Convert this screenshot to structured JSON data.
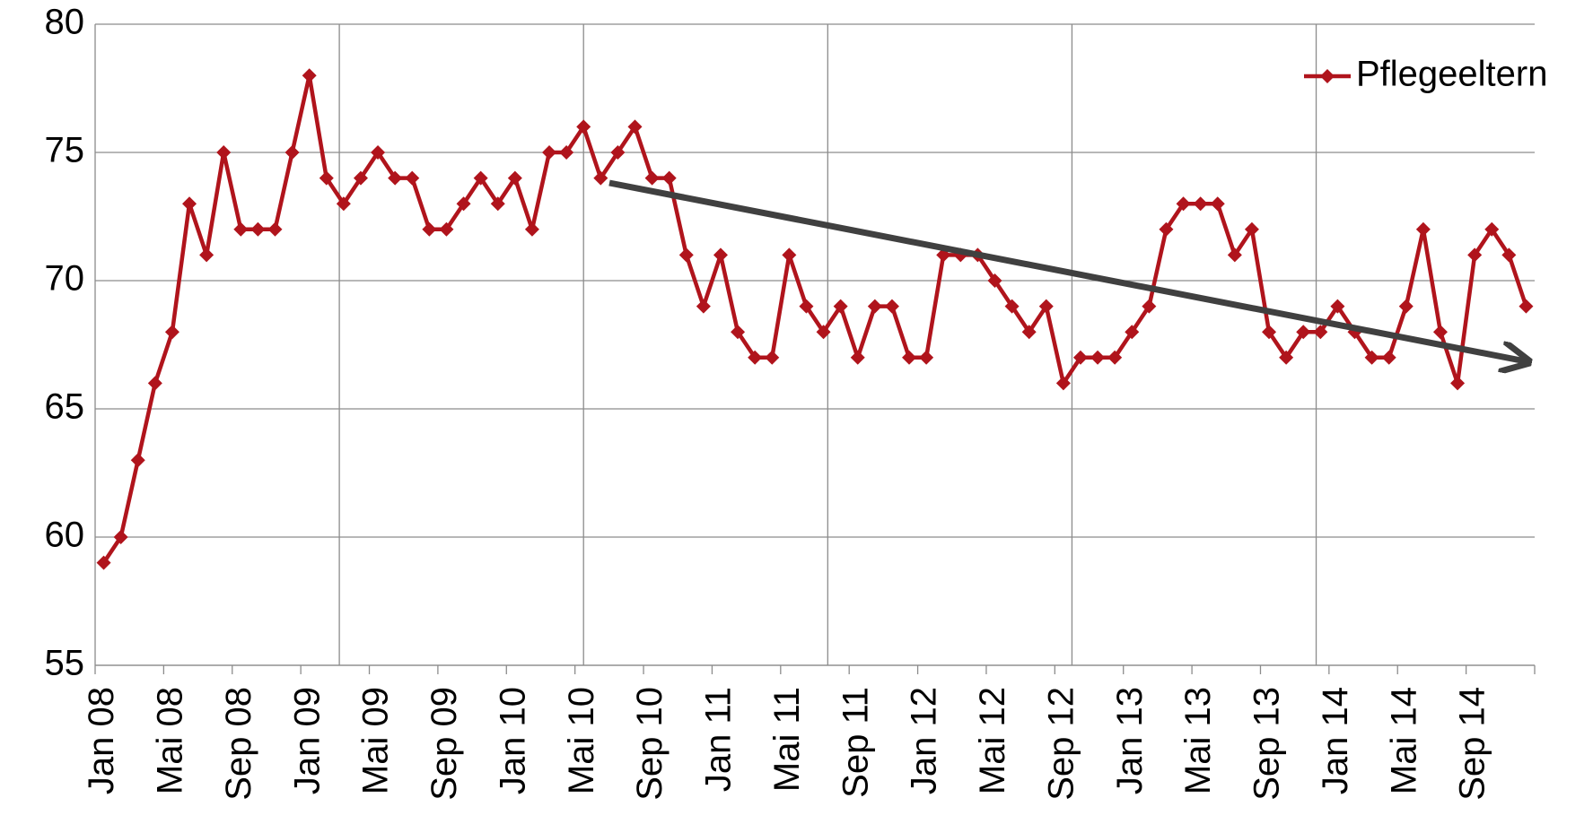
{
  "chart_data": {
    "type": "line",
    "categories": [
      "Jan 08",
      null,
      null,
      null,
      "Mai 08",
      null,
      null,
      null,
      "Sep 08",
      null,
      null,
      null,
      "Jan 09",
      null,
      null,
      null,
      "Mai 09",
      null,
      null,
      null,
      "Sep 09",
      null,
      null,
      null,
      "Jan 10",
      null,
      null,
      null,
      "Mai 10",
      null,
      null,
      null,
      "Sep 10",
      null,
      null,
      null,
      "Jan 11",
      null,
      null,
      null,
      "Mai 11",
      null,
      null,
      null,
      "Sep 11",
      null,
      null,
      null,
      "Jan 12",
      null,
      null,
      null,
      "Mai 12",
      null,
      null,
      null,
      "Sep 12",
      null,
      null,
      null,
      "Jan 13",
      null,
      null,
      null,
      "Mai 13",
      null,
      null,
      null,
      "Sep 13",
      null,
      null,
      null,
      "Jan 14",
      null,
      null,
      null,
      "Mai 14",
      null,
      null,
      null,
      "Sep 14",
      null,
      null,
      null
    ],
    "series": [
      {
        "name": "Pflegeeltern",
        "color": "#b0141c",
        "values": [
          59,
          60,
          63,
          66,
          68,
          73,
          71,
          75,
          72,
          72,
          72,
          75,
          78,
          74,
          73,
          74,
          75,
          74,
          74,
          72,
          72,
          73,
          74,
          73,
          74,
          72,
          75,
          75,
          76,
          74,
          75,
          76,
          74,
          74,
          71,
          69,
          71,
          68,
          67,
          67,
          71,
          69,
          68,
          69,
          67,
          69,
          69,
          67,
          67,
          71,
          71,
          71,
          70,
          69,
          68,
          69,
          66,
          67,
          67,
          67,
          68,
          69,
          72,
          73,
          73,
          73,
          71,
          72,
          68,
          67,
          68,
          68,
          69,
          68,
          67,
          67,
          69,
          72,
          68,
          66,
          71,
          72,
          71,
          69
        ]
      }
    ],
    "ylim": [
      55,
      80
    ],
    "yticks": [
      55,
      60,
      65,
      70,
      75,
      80
    ],
    "grid": true,
    "legend": "top-right"
  }
}
